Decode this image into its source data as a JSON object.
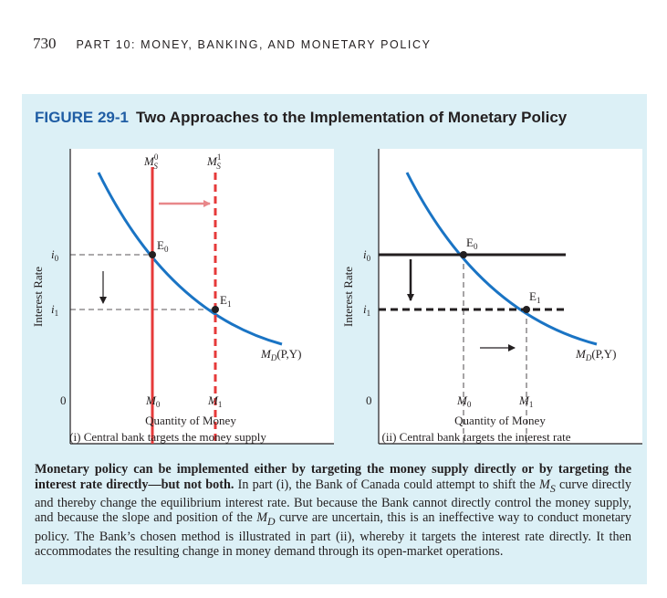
{
  "header": {
    "page_number": "730",
    "running_head": "PART 10: MONEY, BANKING, AND MONETARY POLICY"
  },
  "figure": {
    "label": "FIGURE 29-1",
    "title": "Two Approaches to the Implementation of Monetary Policy"
  },
  "panels": [
    {
      "y_axis_label": "Interest Rate",
      "x_axis_label": "Quantity of Money",
      "caption": "(i) Central bank targets the money supply",
      "origin": "0",
      "y_ticks": [
        "i",
        "i"
      ],
      "y_tick_subs": [
        "0",
        "1"
      ],
      "x_ticks": [
        "M",
        "M"
      ],
      "x_tick_subs": [
        "0",
        "1"
      ],
      "curve_labels": {
        "md": "M",
        "md_sub": "D",
        "md_args": "(P,Y)"
      },
      "supply_labels": {
        "ms": "M",
        "ms_sub": "S",
        "ms0_sup": "0",
        "ms1_sup": "1"
      },
      "points": [
        "E",
        "E"
      ],
      "point_subs": [
        "0",
        "1"
      ],
      "colors": {
        "supply_line": "#e63a3a",
        "shift_arrow": "#e8878a",
        "demand_curve": "#1a74c4"
      }
    },
    {
      "y_axis_label": "Interest Rate",
      "x_axis_label": "Quantity of Money",
      "caption": "(ii) Central bank targets the interest rate",
      "origin": "0",
      "y_ticks": [
        "i",
        "i"
      ],
      "y_tick_subs": [
        "0",
        "1"
      ],
      "x_ticks": [
        "M",
        "M"
      ],
      "x_tick_subs": [
        "0",
        "1"
      ],
      "curve_labels": {
        "md": "M",
        "md_sub": "D",
        "md_args": "(P,Y)"
      },
      "points": [
        "E",
        "E"
      ],
      "point_subs": [
        "0",
        "1"
      ],
      "colors": {
        "rate_line": "#231f20",
        "demand_curve": "#1a74c4"
      }
    }
  ],
  "description": {
    "lead": "Monetary policy can be implemented either by targeting the money supply directly or by targeting the interest rate directly—but not both.",
    "body_1": " In part (i), the Bank of Canada could attempt to shift the ",
    "ms_symbol": "M",
    "ms_sub": "S",
    "body_2": " curve directly and thereby change the equilibrium interest rate. But because the Bank cannot directly control the money supply, and because the slope and position of the ",
    "md_symbol": "M",
    "md_sub": "D",
    "body_3": " curve are uncertain, this is an ineffective way to conduct monetary policy. The Bank’s chosen method is illustrated in part (ii), whereby it targets the interest rate directly. It then accommodates the resulting change in money demand through its open-market operations."
  }
}
